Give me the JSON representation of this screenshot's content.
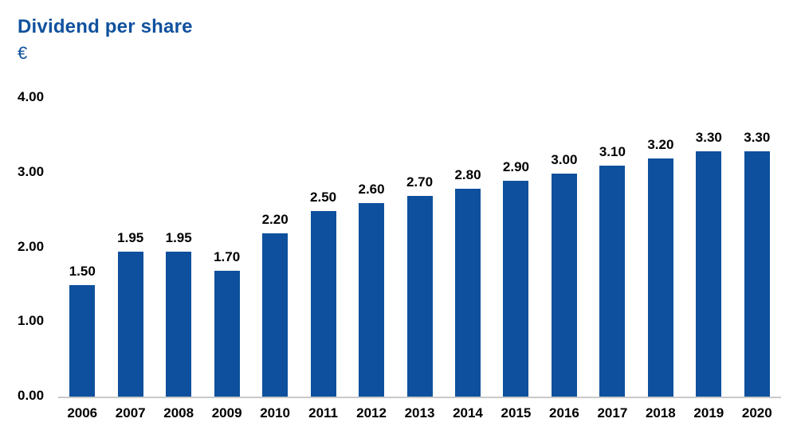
{
  "header": {
    "title": "Dividend per share",
    "currency": "€"
  },
  "colors": {
    "bar": "#0e509d",
    "title": "#10519e",
    "axis_line": "#c9c9c9",
    "label": "#000000"
  },
  "chart_data": {
    "type": "bar",
    "title": "Dividend per share",
    "subtitle": "€",
    "categories": [
      "2006",
      "2007",
      "2008",
      "2009",
      "2010",
      "2011",
      "2012",
      "2013",
      "2014",
      "2015",
      "2016",
      "2017",
      "2018",
      "2019",
      "2020"
    ],
    "values": [
      1.5,
      1.95,
      1.95,
      1.7,
      2.2,
      2.5,
      2.6,
      2.7,
      2.8,
      2.9,
      3.0,
      3.1,
      3.2,
      3.3,
      3.3
    ],
    "value_labels": [
      "1.50",
      "1.95",
      "1.95",
      "1.70",
      "2.20",
      "2.50",
      "2.60",
      "2.70",
      "2.80",
      "2.90",
      "3.00",
      "3.10",
      "3.20",
      "3.30",
      "3.30"
    ],
    "xlabel": "",
    "ylabel": "",
    "ylim": [
      0,
      4
    ],
    "yticks": [
      0,
      1,
      2,
      3,
      4
    ],
    "ytick_labels": [
      "0.00",
      "1.00",
      "2.00",
      "3.00",
      "4.00"
    ],
    "grid": false,
    "legend_position": "none"
  }
}
